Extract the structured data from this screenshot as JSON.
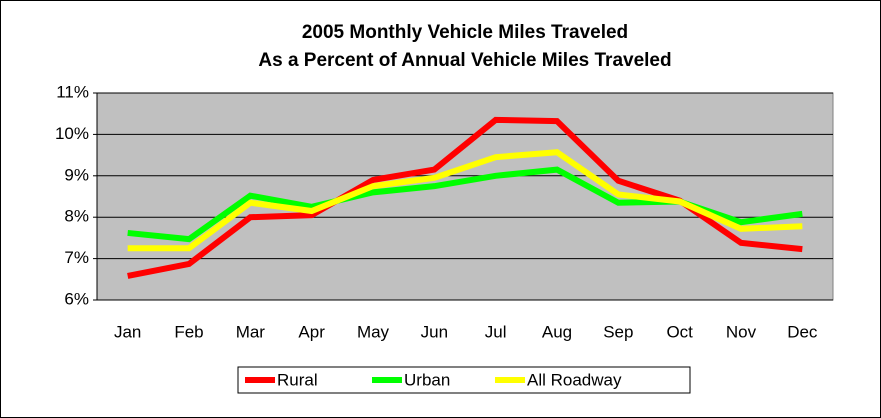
{
  "chart_data": {
    "type": "line",
    "title": [
      "2005 Monthly Vehicle Miles Traveled",
      "As a Percent of Annual Vehicle Miles Traveled"
    ],
    "categories": [
      "Jan",
      "Feb",
      "Mar",
      "Apr",
      "May",
      "Jun",
      "Jul",
      "Aug",
      "Sep",
      "Oct",
      "Nov",
      "Dec"
    ],
    "series": [
      {
        "name": "Rural",
        "color": "#ff0000",
        "values": [
          6.58,
          6.87,
          8.0,
          8.05,
          8.9,
          9.15,
          10.35,
          10.32,
          8.88,
          8.4,
          7.38,
          7.23
        ]
      },
      {
        "name": "Urban",
        "color": "#00ff00",
        "values": [
          7.62,
          7.47,
          8.52,
          8.25,
          8.6,
          8.75,
          9.0,
          9.15,
          8.35,
          8.38,
          7.88,
          8.08
        ]
      },
      {
        "name": "All Roadway",
        "color": "#ffff00",
        "values": [
          7.25,
          7.25,
          8.35,
          8.15,
          8.75,
          8.95,
          9.45,
          9.57,
          8.55,
          8.38,
          7.72,
          7.78
        ]
      }
    ],
    "ylim": [
      6,
      11
    ],
    "yticks": [
      {
        "value": 6,
        "label": "6%"
      },
      {
        "value": 7,
        "label": "7%"
      },
      {
        "value": 8,
        "label": "8%"
      },
      {
        "value": 9,
        "label": "9%"
      },
      {
        "value": 10,
        "label": "10%"
      },
      {
        "value": 11,
        "label": "11%"
      }
    ],
    "grid": true,
    "legend": "bottom",
    "plot_background": "#c0c0c0"
  }
}
